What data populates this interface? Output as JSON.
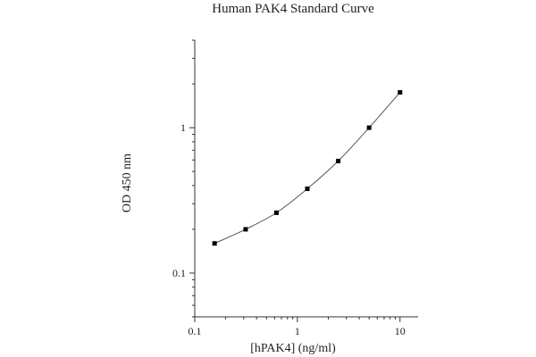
{
  "chart_data": {
    "type": "line",
    "title": "Human PAK4 Standard Curve",
    "xlabel": "[hPAK4] (ng/ml)",
    "ylabel": "OD 450 nm",
    "x_scale": "log",
    "y_scale": "log",
    "xlim": [
      0.1,
      15
    ],
    "ylim": [
      0.05,
      4
    ],
    "x_ticks": [
      {
        "value": 0.1,
        "label": "0.1"
      },
      {
        "value": 1,
        "label": "1"
      },
      {
        "value": 10,
        "label": "10"
      }
    ],
    "y_ticks": [
      {
        "value": 0.1,
        "label": "0.1"
      },
      {
        "value": 1,
        "label": "1"
      }
    ],
    "grid": false,
    "series": [
      {
        "x": [
          0.156,
          0.313,
          0.625,
          1.25,
          2.5,
          5,
          10
        ],
        "y": [
          0.16,
          0.2,
          0.26,
          0.38,
          0.59,
          1.0,
          1.75
        ]
      }
    ],
    "line_color": "#555555",
    "marker_color": "#000000"
  }
}
